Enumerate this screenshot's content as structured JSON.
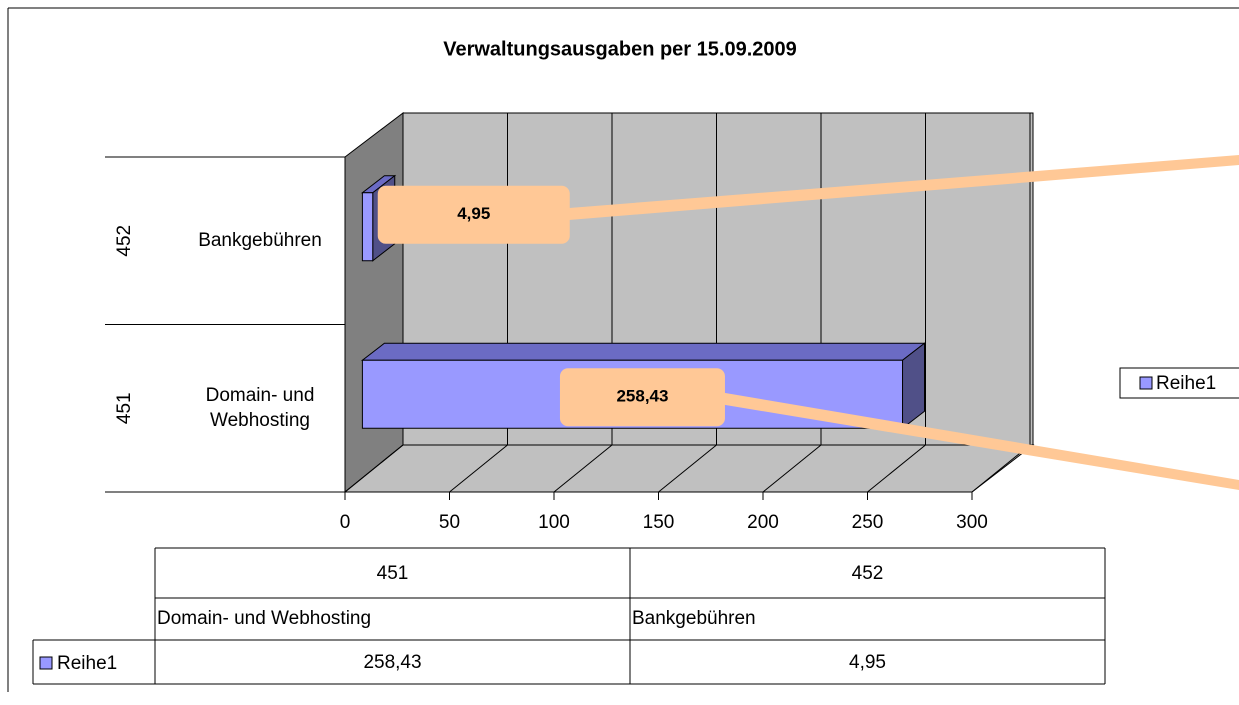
{
  "chart_data": {
    "type": "bar",
    "orientation": "horizontal",
    "title": "Verwaltungsausgaben per 15.09.2009",
    "category_codes": [
      "451",
      "452"
    ],
    "categories": [
      "Domain- und Webhosting",
      "Bankgebühren"
    ],
    "series": [
      {
        "name": "Reihe1",
        "color": "#9999ff",
        "values": [
          258.43,
          4.95
        ],
        "value_labels": [
          "258,43",
          "4,95"
        ]
      }
    ],
    "xlim": [
      0,
      300
    ],
    "xticks": [
      0,
      50,
      100,
      150,
      200,
      250,
      300
    ],
    "grid": true,
    "legend": "right"
  }
}
